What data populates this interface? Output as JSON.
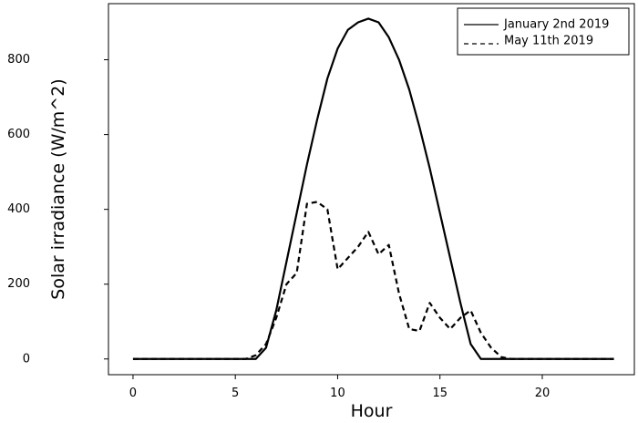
{
  "chart_data": {
    "type": "line",
    "title": "",
    "xlabel": "Hour",
    "ylabel": "Solar irradiance (W/m^2)",
    "xlim": [
      -1.2,
      24.5
    ],
    "ylim": [
      -42,
      950
    ],
    "xticks": [
      0,
      5,
      10,
      15,
      20
    ],
    "yticks": [
      0,
      200,
      400,
      600,
      800
    ],
    "grid": false,
    "legend_position": "top-right",
    "series": [
      {
        "name": "January 2nd 2019",
        "style": "solid",
        "color": "#000000",
        "x": [
          0,
          0.5,
          1,
          1.5,
          2,
          2.5,
          3,
          3.5,
          4,
          4.5,
          5,
          5.5,
          6,
          6.5,
          7,
          7.5,
          8,
          8.5,
          9,
          9.5,
          10,
          10.5,
          11,
          11.5,
          12,
          12.5,
          13,
          13.5,
          14,
          14.5,
          15,
          15.5,
          16,
          16.5,
          17,
          17.5,
          18,
          18.5,
          19,
          19.5,
          20,
          20.5,
          21,
          21.5,
          22,
          22.5,
          23,
          23.5
        ],
        "y": [
          0,
          0,
          0,
          0,
          0,
          0,
          0,
          0,
          0,
          0,
          0,
          0,
          0,
          30,
          130,
          260,
          390,
          520,
          640,
          750,
          830,
          880,
          900,
          910,
          900,
          860,
          800,
          720,
          620,
          510,
          390,
          270,
          150,
          40,
          0,
          0,
          0,
          0,
          0,
          0,
          0,
          0,
          0,
          0,
          0,
          0,
          0,
          0
        ]
      },
      {
        "name": "May 11th 2019",
        "style": "dashed",
        "color": "#000000",
        "x": [
          0,
          0.5,
          1,
          1.5,
          2,
          2.5,
          3,
          3.5,
          4,
          4.5,
          5,
          5.5,
          6,
          6.5,
          7,
          7.5,
          8,
          8.5,
          9,
          9.5,
          10,
          10.5,
          11,
          11.5,
          12,
          12.5,
          13,
          13.5,
          14,
          14.5,
          15,
          15.5,
          16,
          16.5,
          17,
          17.5,
          18,
          18.5,
          19,
          19.5,
          20,
          20.5,
          21,
          21.5,
          22,
          22.5,
          23,
          23.5
        ],
        "y": [
          0,
          0,
          0,
          0,
          0,
          0,
          0,
          0,
          0,
          0,
          0,
          0,
          10,
          40,
          110,
          200,
          230,
          415,
          420,
          400,
          240,
          270,
          300,
          340,
          280,
          305,
          175,
          80,
          75,
          150,
          110,
          80,
          110,
          130,
          70,
          30,
          5,
          0,
          0,
          0,
          0,
          0,
          0,
          0,
          0,
          0,
          0,
          0
        ]
      }
    ]
  }
}
